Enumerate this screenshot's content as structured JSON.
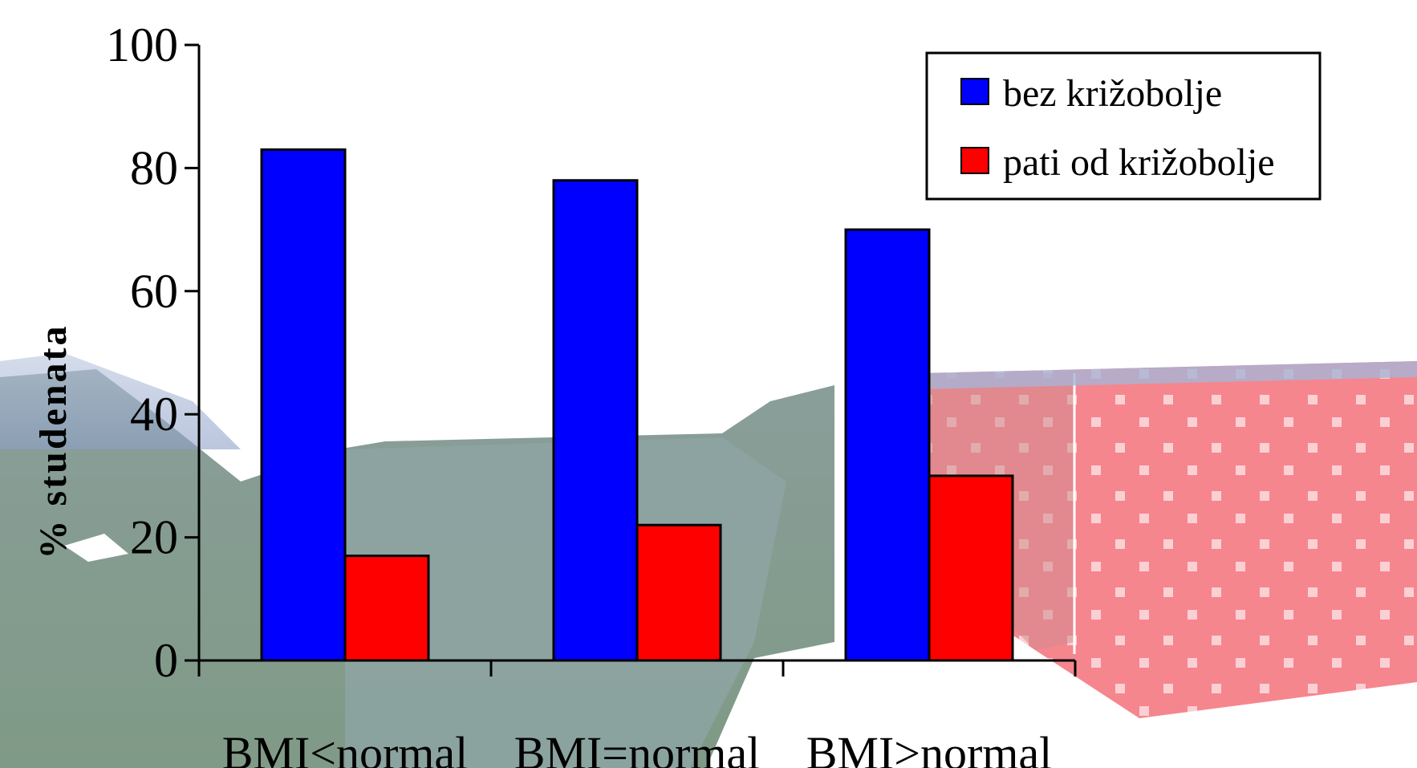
{
  "chart_data": {
    "type": "bar",
    "categories": [
      "BMI<normal",
      "BMI=normal",
      "BMI>normal"
    ],
    "series": [
      {
        "name": "bez križobolje",
        "color": "#0000ff",
        "values": [
          83,
          78,
          70
        ]
      },
      {
        "name": "pati od križobolje",
        "color": "#ff0000",
        "values": [
          17,
          22,
          30
        ]
      }
    ],
    "title": "",
    "xlabel": "",
    "ylabel": "% studenata",
    "ylim": [
      0,
      100
    ],
    "yticks": [
      "0",
      "20",
      "40",
      "60",
      "80",
      "100"
    ],
    "grid": false,
    "legend_position": "top-right",
    "background": "decorative photo (mountains/landscape) behind plot area"
  }
}
